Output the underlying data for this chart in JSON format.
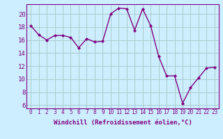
{
  "x": [
    0,
    1,
    2,
    3,
    4,
    5,
    6,
    7,
    8,
    9,
    10,
    11,
    12,
    13,
    14,
    15,
    16,
    17,
    18,
    19,
    20,
    21,
    22,
    23
  ],
  "y": [
    18.2,
    16.8,
    16.0,
    16.7,
    16.7,
    16.4,
    14.8,
    16.2,
    15.7,
    15.8,
    20.0,
    20.9,
    20.8,
    17.5,
    20.8,
    18.2,
    13.5,
    10.5,
    10.5,
    6.3,
    8.7,
    10.2,
    11.7,
    11.8
  ],
  "line_color": "#800080",
  "marker": "D",
  "marker_size": 2,
  "linewidth": 1.0,
  "bg_color": "#cceeff",
  "grid_color": "#aacccc",
  "xlabel": "Windchill (Refroidissement éolien,°C)",
  "xlabel_fontsize": 6.5,
  "xtick_labels": [
    "0",
    "1",
    "2",
    "3",
    "4",
    "5",
    "6",
    "7",
    "8",
    "9",
    "10",
    "11",
    "12",
    "13",
    "14",
    "15",
    "16",
    "17",
    "18",
    "19",
    "20",
    "21",
    "22",
    "23"
  ],
  "ylim": [
    5.5,
    21.5
  ],
  "xlim": [
    -0.5,
    23.5
  ],
  "yticks": [
    6,
    8,
    10,
    12,
    14,
    16,
    18,
    20
  ],
  "ytick_fontsize": 6.5,
  "xtick_fontsize": 5.5
}
